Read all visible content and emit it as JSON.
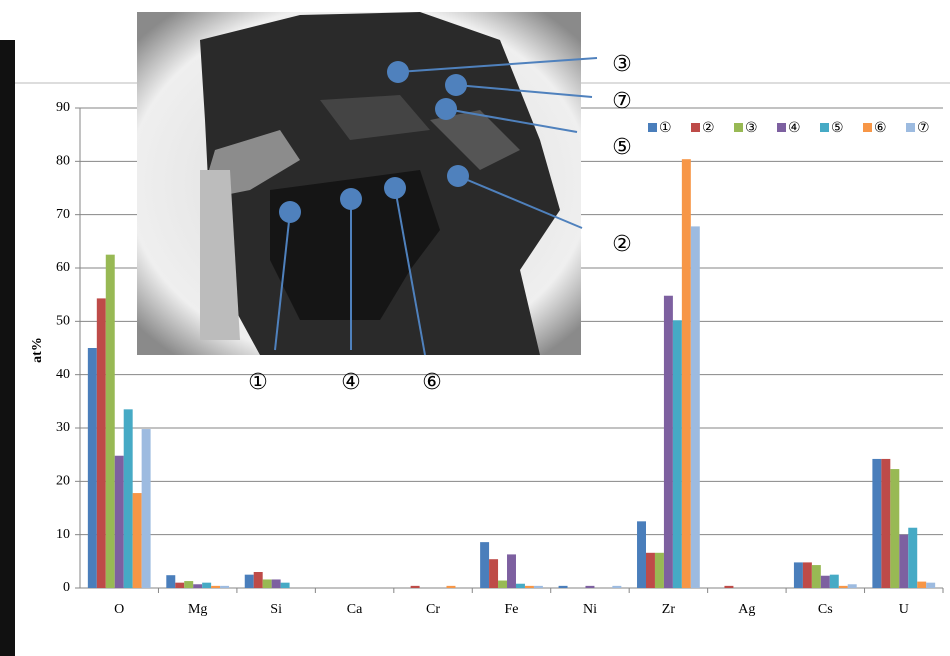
{
  "chart_data": {
    "type": "bar",
    "y_label": "at%",
    "categories": [
      "O",
      "Mg",
      "Si",
      "Ca",
      "Cr",
      "Fe",
      "Ni",
      "Zr",
      "Ag",
      "Cs",
      "U"
    ],
    "series": [
      {
        "name": "①",
        "color": "#4a7ebb",
        "values": [
          45,
          2.4,
          2.5,
          0,
          0,
          8.6,
          0.4,
          12.5,
          0,
          4.8,
          24.2
        ]
      },
      {
        "name": "②",
        "color": "#be4b48",
        "values": [
          54.3,
          1.0,
          3.0,
          0,
          0.4,
          5.4,
          0,
          6.6,
          0.4,
          4.8,
          24.2
        ]
      },
      {
        "name": "③",
        "color": "#98b954",
        "values": [
          62.5,
          1.3,
          1.6,
          0,
          0,
          1.4,
          0,
          6.6,
          0,
          4.3,
          22.3
        ]
      },
      {
        "name": "④",
        "color": "#7d60a0",
        "values": [
          24.8,
          0.7,
          1.6,
          0,
          0,
          6.3,
          0.4,
          54.8,
          0,
          2.3,
          10
        ]
      },
      {
        "name": "⑤",
        "color": "#46aac5",
        "values": [
          33.5,
          1.0,
          1.0,
          0,
          0,
          0.8,
          0,
          50.2,
          0,
          2.5,
          11.3
        ]
      },
      {
        "name": "⑥",
        "color": "#f79646",
        "values": [
          17.8,
          0.4,
          0,
          0,
          0.4,
          0.4,
          0,
          80.4,
          0,
          0.4,
          1.2
        ]
      },
      {
        "name": "⑦",
        "color": "#9dbbe0",
        "values": [
          29.8,
          0.4,
          0,
          0,
          0,
          0.4,
          0.4,
          67.8,
          0,
          0.7,
          1.0
        ]
      }
    ],
    "ylim": [
      0,
      90
    ],
    "yticks": [
      0,
      10,
      20,
      30,
      40,
      50,
      60,
      70,
      80,
      90
    ],
    "grid": true,
    "legend": "upper right"
  }
}
